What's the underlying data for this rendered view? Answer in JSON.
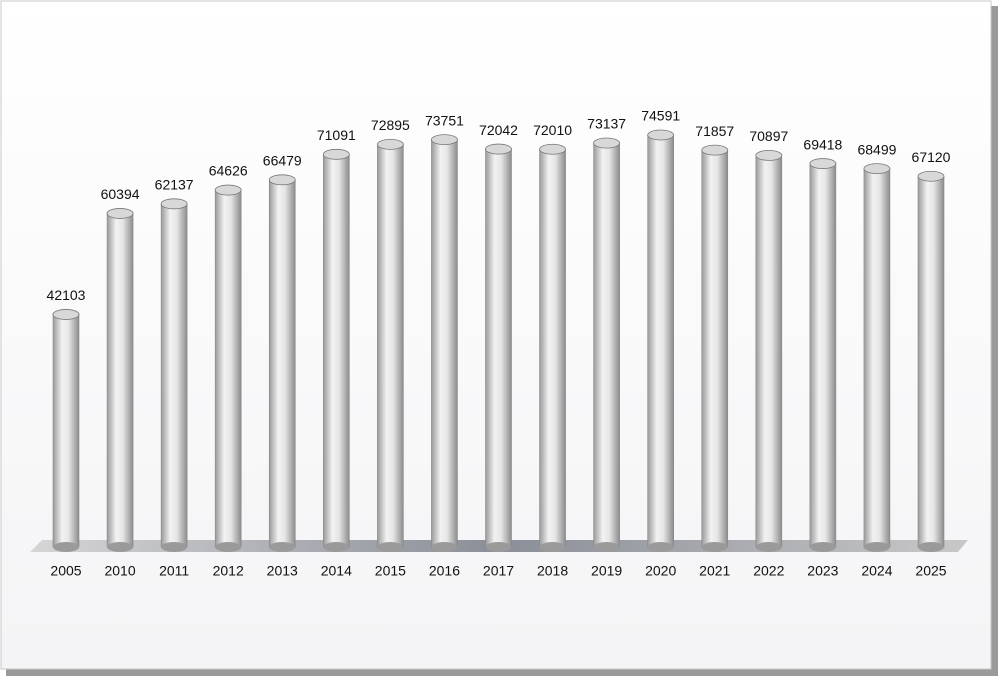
{
  "chart_data": {
    "type": "bar",
    "categories": [
      "2005",
      "2010",
      "2011",
      "2012",
      "2013",
      "2014",
      "2015",
      "2016",
      "2017",
      "2018",
      "2019",
      "2020",
      "2021",
      "2022",
      "2023",
      "2024",
      "2025"
    ],
    "values": [
      42103,
      60394,
      62137,
      64626,
      66479,
      71091,
      72895,
      73751,
      72042,
      72010,
      73137,
      74591,
      71857,
      70897,
      69418,
      68499,
      67120
    ],
    "color": "#d8d8d8"
  }
}
